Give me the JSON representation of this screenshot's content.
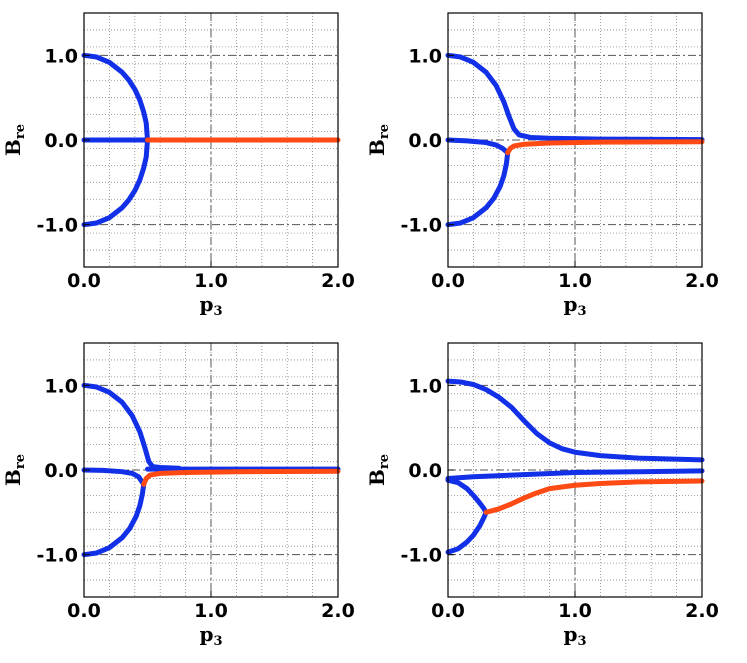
{
  "chart_data": [
    {
      "type": "line",
      "panel": "top-left",
      "xlabel": "p",
      "xlabel_sub": "3",
      "ylabel": "B",
      "ylabel_sub": "re",
      "xlim": [
        0,
        2
      ],
      "ylim": [
        -1.5,
        1.5
      ],
      "x_ticks": [
        0,
        1,
        2
      ],
      "x_tick_labels": [
        "0.0",
        "1.0",
        "2.0"
      ],
      "y_ticks": [
        -1,
        0,
        1
      ],
      "y_tick_labels": [
        "-1.0",
        "0.0",
        "1.0"
      ],
      "grid": true,
      "series": [
        {
          "color": "#1230e8",
          "points": [
            [
              0,
              1
            ],
            [
              0.1,
              0.98
            ],
            [
              0.2,
              0.917
            ],
            [
              0.3,
              0.8
            ],
            [
              0.35,
              0.714
            ],
            [
              0.4,
              0.6
            ],
            [
              0.44,
              0.47
            ],
            [
              0.47,
              0.33
            ],
            [
              0.49,
              0.2
            ],
            [
              0.5,
              0
            ]
          ]
        },
        {
          "color": "#1230e8",
          "points": [
            [
              0,
              -1
            ],
            [
              0.1,
              -0.98
            ],
            [
              0.2,
              -0.917
            ],
            [
              0.3,
              -0.8
            ],
            [
              0.35,
              -0.714
            ],
            [
              0.4,
              -0.6
            ],
            [
              0.44,
              -0.47
            ],
            [
              0.47,
              -0.33
            ],
            [
              0.49,
              -0.2
            ],
            [
              0.5,
              0
            ]
          ]
        },
        {
          "color": "#1230e8",
          "points": [
            [
              0,
              0
            ],
            [
              0.5,
              0
            ]
          ]
        },
        {
          "color": "#ff4a14",
          "points": [
            [
              0.5,
              0
            ],
            [
              2,
              0
            ]
          ]
        }
      ]
    },
    {
      "type": "line",
      "panel": "top-right",
      "xlabel": "p",
      "xlabel_sub": "3",
      "ylabel": "B",
      "ylabel_sub": "re",
      "xlim": [
        0,
        2
      ],
      "ylim": [
        -1.5,
        1.5
      ],
      "x_ticks": [
        0,
        1,
        2
      ],
      "x_tick_labels": [
        "0.0",
        "1.0",
        "2.0"
      ],
      "y_ticks": [
        -1,
        0,
        1
      ],
      "y_tick_labels": [
        "-1.0",
        "0.0",
        "1.0"
      ],
      "grid": true,
      "series": [
        {
          "color": "#1230e8",
          "points": [
            [
              0,
              1
            ],
            [
              0.1,
              0.98
            ],
            [
              0.2,
              0.917
            ],
            [
              0.3,
              0.8
            ],
            [
              0.38,
              0.64
            ],
            [
              0.44,
              0.45
            ],
            [
              0.48,
              0.28
            ],
            [
              0.52,
              0.13
            ],
            [
              0.56,
              0.06
            ],
            [
              0.65,
              0.03
            ],
            [
              0.8,
              0.02
            ],
            [
              1.2,
              0.01
            ],
            [
              2,
              0.005
            ]
          ]
        },
        {
          "color": "#1230e8",
          "points": [
            [
              0,
              -1
            ],
            [
              0.1,
              -0.98
            ],
            [
              0.2,
              -0.917
            ],
            [
              0.3,
              -0.8
            ],
            [
              0.36,
              -0.69
            ],
            [
              0.41,
              -0.55
            ],
            [
              0.44,
              -0.42
            ],
            [
              0.46,
              -0.28
            ],
            [
              0.47,
              -0.15
            ]
          ]
        },
        {
          "color": "#1230e8",
          "points": [
            [
              0,
              0
            ],
            [
              0.15,
              -0.01
            ],
            [
              0.3,
              -0.03
            ],
            [
              0.38,
              -0.06
            ],
            [
              0.43,
              -0.1
            ],
            [
              0.47,
              -0.15
            ]
          ]
        },
        {
          "color": "#ff4a14",
          "points": [
            [
              0.47,
              -0.15
            ],
            [
              0.49,
              -0.1
            ],
            [
              0.52,
              -0.07
            ],
            [
              0.6,
              -0.05
            ],
            [
              0.8,
              -0.035
            ],
            [
              1.2,
              -0.025
            ],
            [
              2,
              -0.02
            ]
          ]
        }
      ]
    },
    {
      "type": "line",
      "panel": "bottom-left",
      "xlabel": "p",
      "xlabel_sub": "3",
      "ylabel": "B",
      "ylabel_sub": "re",
      "xlim": [
        0,
        2
      ],
      "ylim": [
        -1.5,
        1.5
      ],
      "x_ticks": [
        0,
        1,
        2
      ],
      "x_tick_labels": [
        "0.0",
        "1.0",
        "2.0"
      ],
      "y_ticks": [
        -1,
        0,
        1
      ],
      "y_tick_labels": [
        "-1.0",
        "0.0",
        "1.0"
      ],
      "grid": true,
      "series": [
        {
          "color": "#1230e8",
          "points": [
            [
              0,
              1
            ],
            [
              0.1,
              0.98
            ],
            [
              0.2,
              0.917
            ],
            [
              0.3,
              0.8
            ],
            [
              0.38,
              0.64
            ],
            [
              0.44,
              0.45
            ],
            [
              0.48,
              0.26
            ],
            [
              0.51,
              0.1
            ],
            [
              0.54,
              0.04
            ],
            [
              0.6,
              0.03
            ],
            [
              0.75,
              0.02
            ]
          ]
        },
        {
          "color": "#1230e8",
          "points": [
            [
              0,
              -1
            ],
            [
              0.1,
              -0.98
            ],
            [
              0.2,
              -0.917
            ],
            [
              0.3,
              -0.8
            ],
            [
              0.36,
              -0.69
            ],
            [
              0.41,
              -0.55
            ],
            [
              0.44,
              -0.42
            ],
            [
              0.46,
              -0.28
            ],
            [
              0.47,
              -0.17
            ]
          ]
        },
        {
          "color": "#1230e8",
          "points": [
            [
              0,
              0
            ],
            [
              0.15,
              -0.005
            ],
            [
              0.3,
              -0.02
            ],
            [
              0.38,
              -0.04
            ],
            [
              0.43,
              -0.08
            ],
            [
              0.47,
              -0.17
            ]
          ]
        },
        {
          "color": "#1230e8",
          "points": [
            [
              0.5,
              0.01
            ],
            [
              2,
              0.01
            ]
          ]
        },
        {
          "color": "#ff4a14",
          "points": [
            [
              0.47,
              -0.17
            ],
            [
              0.49,
              -0.1
            ],
            [
              0.52,
              -0.06
            ],
            [
              0.6,
              -0.04
            ],
            [
              0.8,
              -0.03
            ],
            [
              1.2,
              -0.02
            ],
            [
              2,
              -0.015
            ]
          ]
        }
      ]
    },
    {
      "type": "line",
      "panel": "bottom-right",
      "xlabel": "p",
      "xlabel_sub": "3",
      "ylabel": "B",
      "ylabel_sub": "re",
      "xlim": [
        0,
        2
      ],
      "ylim": [
        -1.5,
        1.5
      ],
      "x_ticks": [
        0,
        1,
        2
      ],
      "x_tick_labels": [
        "0.0",
        "1.0",
        "2.0"
      ],
      "y_ticks": [
        -1,
        0,
        1
      ],
      "y_tick_labels": [
        "-1.0",
        "0.0",
        "1.0"
      ],
      "grid": true,
      "series": [
        {
          "color": "#1230e8",
          "points": [
            [
              0,
              1.05
            ],
            [
              0.1,
              1.04
            ],
            [
              0.2,
              1.01
            ],
            [
              0.3,
              0.95
            ],
            [
              0.4,
              0.86
            ],
            [
              0.5,
              0.74
            ],
            [
              0.6,
              0.58
            ],
            [
              0.7,
              0.43
            ],
            [
              0.8,
              0.32
            ],
            [
              0.9,
              0.25
            ],
            [
              1.0,
              0.21
            ],
            [
              1.2,
              0.17
            ],
            [
              1.5,
              0.14
            ],
            [
              2,
              0.12
            ]
          ]
        },
        {
          "color": "#1230e8",
          "points": [
            [
              0,
              -0.1
            ],
            [
              0.2,
              -0.08
            ],
            [
              0.5,
              -0.06
            ],
            [
              1.0,
              -0.03
            ],
            [
              1.5,
              -0.02
            ],
            [
              2,
              -0.01
            ]
          ]
        },
        {
          "color": "#1230e8",
          "points": [
            [
              0,
              -0.97
            ],
            [
              0.08,
              -0.93
            ],
            [
              0.15,
              -0.85
            ],
            [
              0.2,
              -0.77
            ],
            [
              0.25,
              -0.66
            ],
            [
              0.28,
              -0.57
            ],
            [
              0.3,
              -0.5
            ]
          ]
        },
        {
          "color": "#1230e8",
          "points": [
            [
              0,
              -0.12
            ],
            [
              0.08,
              -0.15
            ],
            [
              0.15,
              -0.22
            ],
            [
              0.2,
              -0.3
            ],
            [
              0.25,
              -0.39
            ],
            [
              0.28,
              -0.45
            ],
            [
              0.3,
              -0.5
            ]
          ]
        },
        {
          "color": "#ff4a14",
          "points": [
            [
              0.3,
              -0.5
            ],
            [
              0.4,
              -0.46
            ],
            [
              0.5,
              -0.4
            ],
            [
              0.6,
              -0.33
            ],
            [
              0.7,
              -0.27
            ],
            [
              0.8,
              -0.22
            ],
            [
              1.0,
              -0.18
            ],
            [
              1.2,
              -0.16
            ],
            [
              1.5,
              -0.14
            ],
            [
              2,
              -0.13
            ]
          ]
        }
      ]
    }
  ]
}
